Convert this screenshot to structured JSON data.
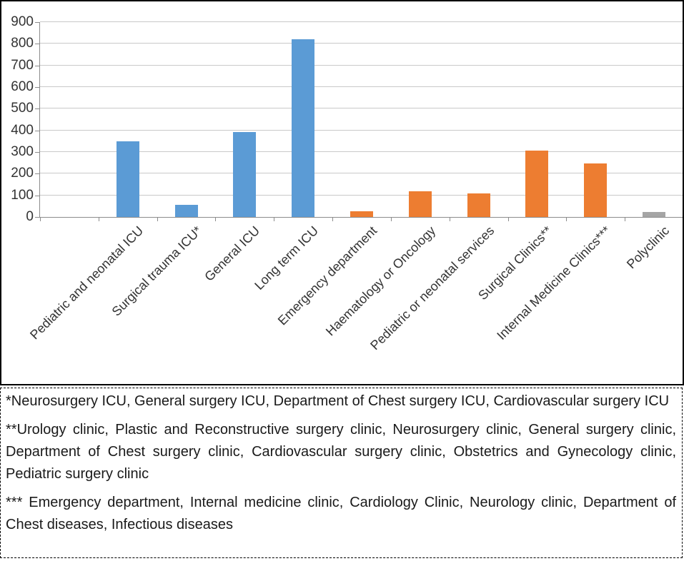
{
  "chart_data": {
    "type": "bar",
    "title": "",
    "xlabel": "",
    "ylabel": "",
    "categories": [
      "Pediatric and neonatal ICU",
      "Surgical trauma ICU*",
      "General ICU",
      "Long term ICU",
      "Emergency department",
      "Haematology or Oncology",
      "Pediatric or neonatal services",
      "Surgical Clinics**",
      "Internal Medicine Clinics***",
      "Polyclinic"
    ],
    "values": [
      350,
      57,
      392,
      820,
      25,
      120,
      110,
      306,
      246,
      22
    ],
    "bar_colors": [
      "#5B9BD5",
      "#5B9BD5",
      "#5B9BD5",
      "#5B9BD5",
      "#ED7D31",
      "#ED7D31",
      "#ED7D31",
      "#ED7D31",
      "#ED7D31",
      "#A5A5A5"
    ],
    "ylim": [
      0,
      900
    ],
    "yticks": [
      0,
      100,
      200,
      300,
      400,
      500,
      600,
      700,
      800,
      900
    ],
    "grid": true,
    "legend": "none",
    "gridline_color": "#c9c9c9",
    "axis_color": "#8c8c8c",
    "tick_label_color": "#333333"
  },
  "footnotes": {
    "note1": "*Neurosurgery ICU, General surgery ICU, Department of Chest surgery ICU, Cardiovascular surgery ICU",
    "note2": "**Urology clinic, Plastic and Reconstructive surgery clinic, Neurosurgery clinic, General surgery clinic, Department of Chest surgery clinic, Cardiovascular surgery clinic, Obstetrics  and Gynecology clinic, Pediatric surgery clinic",
    "note3": "*** Emergency department, Internal medicine clinic, Cardiology Clinic, Neurology clinic, Department of Chest diseases, Infectious diseases"
  }
}
